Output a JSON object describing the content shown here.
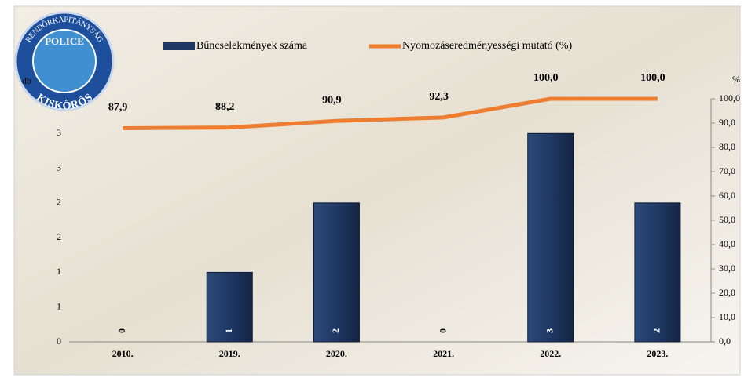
{
  "chart_data": {
    "type": "bar-line",
    "y_label": "db",
    "y2_label": "%",
    "categories": [
      "2010.",
      "2019.",
      "2020.",
      "2021.",
      "2022.",
      "2023."
    ],
    "series": [
      {
        "name": "Bűncselekmények száma",
        "type": "bar",
        "color": "#1f3864",
        "values": [
          0,
          1,
          2,
          0,
          3,
          2
        ]
      },
      {
        "name": "Nyomozáseredményességi mutató (%)",
        "type": "line",
        "axis": "y2",
        "color": "#ed7d31",
        "values": [
          87.9,
          88.2,
          90.9,
          92.3,
          100,
          100
        ],
        "value_labels": [
          "87,9",
          "88,2",
          "90,9",
          "92,3",
          "100,0",
          "100,0"
        ]
      }
    ],
    "ylim": [
      0,
      3.5
    ],
    "yticks": [
      0,
      {
        "value": 0.5,
        "label": "1"
      },
      1,
      {
        "value": 1.5,
        "label": "2"
      },
      2,
      {
        "value": 2.5,
        "label": "3"
      },
      3
    ],
    "y2lim": [
      0,
      100
    ],
    "y2ticks": [
      {
        "value": 0,
        "label": "0,0"
      },
      {
        "value": 10,
        "label": "10,0"
      },
      {
        "value": 20,
        "label": "20,0"
      },
      {
        "value": 30,
        "label": "30,0"
      },
      {
        "value": 40,
        "label": "40,0"
      },
      {
        "value": 50,
        "label": "50,0"
      },
      {
        "value": 60,
        "label": "60,0"
      },
      {
        "value": 70,
        "label": "70,0"
      },
      {
        "value": 80,
        "label": "80,0"
      },
      {
        "value": 90,
        "label": "90,0"
      },
      {
        "value": 100,
        "label": "100,0"
      }
    ],
    "legend": "top",
    "logo": {
      "top": "RENDŐRKAPITÁNYSÁG",
      "middle": "POLICE",
      "bottom": "KISKŐRÖS"
    }
  }
}
